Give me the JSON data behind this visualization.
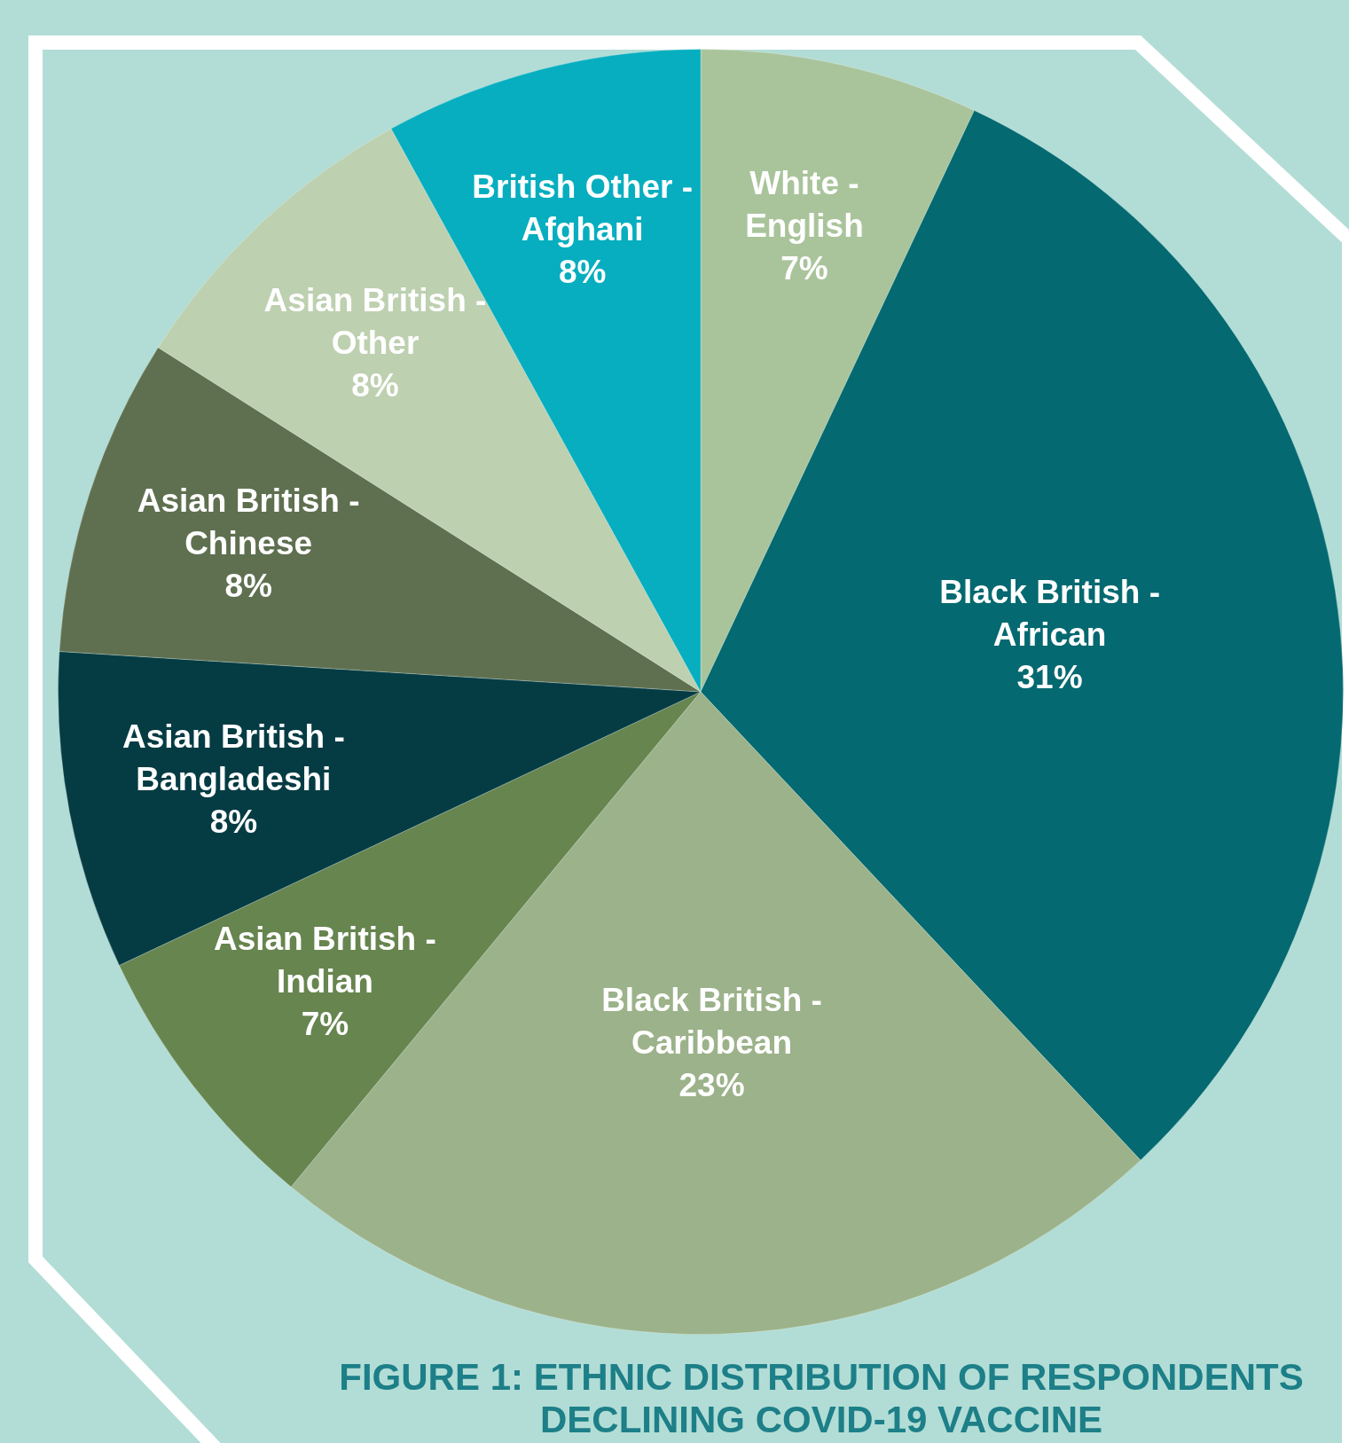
{
  "chart_data": {
    "type": "pie",
    "title": "FIGURE 1: ETHNIC DISTRIBUTION OF RESPONDENTS DECLINING COVID-19 VACCINE",
    "categories": [
      "White - English",
      "Black British - African",
      "Black British - Caribbean",
      "Asian British - Indian",
      "Asian British - Bangladeshi",
      "Asian British - Chinese",
      "Asian British - Other",
      "British Other - Afghani"
    ],
    "values": [
      7,
      31,
      23,
      7,
      8,
      8,
      8,
      8
    ],
    "value_labels": [
      "7%",
      "31%",
      "23%",
      "7%",
      "8%",
      "8%",
      "8%",
      "8%"
    ],
    "colors": [
      "#a9c49b",
      "#046970",
      "#9cb28a",
      "#67854f",
      "#053c44",
      "#5f7050",
      "#bdd0b0",
      "#06aebf"
    ],
    "legend": false
  }
}
